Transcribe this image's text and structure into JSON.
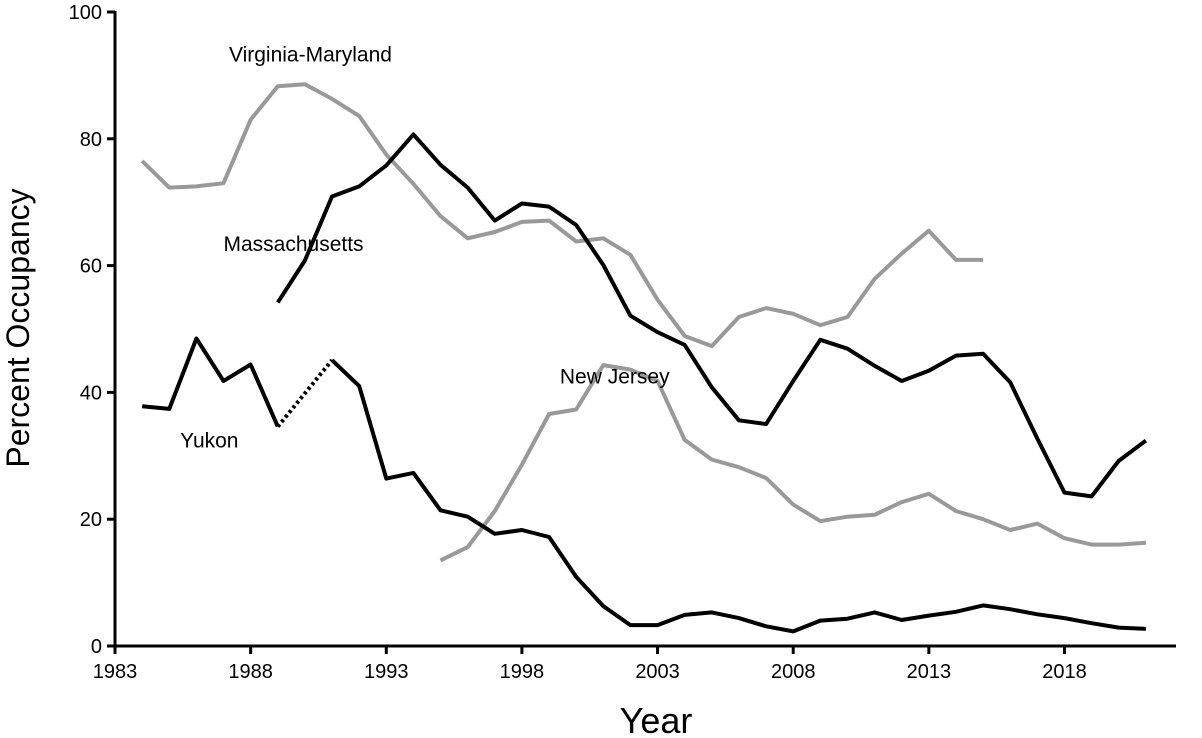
{
  "chart_data": {
    "type": "line",
    "title": "",
    "xlabel": "Year",
    "ylabel": "Percent Occupancy",
    "xlim": [
      1983,
      2022
    ],
    "ylim": [
      0,
      100
    ],
    "x_ticks": [
      1983,
      1988,
      1993,
      1998,
      2003,
      2008,
      2013,
      2018
    ],
    "y_ticks": [
      0,
      20,
      40,
      60,
      80,
      100
    ],
    "grid": false,
    "legend": "none",
    "series": [
      {
        "name": "Virginia-Maryland",
        "color": "#999999",
        "x": [
          1984,
          1985,
          1986,
          1987,
          1988,
          1989,
          1990,
          1991,
          1992,
          1993,
          1994,
          1995,
          1996,
          1997,
          1998,
          1999,
          2000,
          2001,
          2002,
          2003,
          2004,
          2005,
          2006,
          2007,
          2008,
          2009,
          2010,
          2011,
          2012,
          2013,
          2014,
          2015
        ],
        "y": [
          76.5,
          72.3,
          72.5,
          73.0,
          83.0,
          88.3,
          88.6,
          86.3,
          83.6,
          77.5,
          72.9,
          67.8,
          64.3,
          65.3,
          66.9,
          67.1,
          63.8,
          64.3,
          61.7,
          54.6,
          48.9,
          47.3,
          51.9,
          53.3,
          52.4,
          50.6,
          51.9,
          57.9,
          61.9,
          65.5,
          60.9,
          60.9
        ]
      },
      {
        "name": "Massachusetts",
        "color": "#000000",
        "x": [
          1989,
          1990,
          1991,
          1992,
          1993,
          1994,
          1995,
          1996,
          1997,
          1998,
          1999,
          2000,
          2001,
          2002,
          2003,
          2004,
          2005,
          2006,
          2007,
          2008,
          2009,
          2010,
          2011,
          2012,
          2013,
          2014,
          2015,
          2016,
          2017,
          2018,
          2019,
          2020,
          2021
        ],
        "y": [
          54.2,
          60.8,
          70.9,
          72.5,
          75.8,
          80.7,
          75.9,
          72.3,
          67.1,
          69.8,
          69.3,
          66.4,
          60.1,
          52.1,
          49.5,
          47.5,
          40.8,
          35.6,
          35.0,
          41.8,
          48.3,
          46.9,
          44.2,
          41.8,
          43.4,
          45.8,
          46.1,
          41.6,
          32.7,
          24.2,
          23.6,
          29.2,
          32.4
        ]
      },
      {
        "name": "New Jersey",
        "color": "#999999",
        "x": [
          1995,
          1996,
          1997,
          1998,
          1999,
          2000,
          2001,
          2002,
          2003,
          2004,
          2005,
          2006,
          2007,
          2008,
          2009,
          2010,
          2011,
          2012,
          2013,
          2014,
          2015,
          2016,
          2017,
          2018,
          2019,
          2020,
          2021
        ],
        "y": [
          13.5,
          15.6,
          21.3,
          28.6,
          36.6,
          37.3,
          44.3,
          43.6,
          41.8,
          32.5,
          29.4,
          28.2,
          26.5,
          22.3,
          19.7,
          20.4,
          20.7,
          22.7,
          24.0,
          21.3,
          20.0,
          18.3,
          19.3,
          17.0,
          16.0,
          16.0,
          16.3
        ]
      },
      {
        "name": "Yukon",
        "color": "#000000",
        "x": [
          1984,
          1985,
          1986,
          1987,
          1988,
          1989,
          1991,
          1992,
          1993,
          1994,
          1995,
          1996,
          1997,
          1998,
          1999,
          2000,
          2001,
          2002,
          2003,
          2004,
          2005,
          2006,
          2007,
          2008,
          2009,
          2010,
          2011,
          2012,
          2013,
          2014,
          2015,
          2016,
          2017,
          2018,
          2019,
          2020,
          2021
        ],
        "y": [
          37.8,
          37.4,
          48.5,
          41.8,
          44.4,
          34.6,
          45.1,
          41.0,
          26.4,
          27.3,
          21.4,
          20.4,
          17.7,
          18.3,
          17.2,
          10.9,
          6.3,
          3.3,
          3.3,
          4.9,
          5.3,
          4.4,
          3.1,
          2.3,
          4.0,
          4.3,
          5.3,
          4.1,
          4.8,
          5.4,
          6.4,
          5.8,
          5.0,
          4.4,
          3.6,
          2.9,
          2.7
        ],
        "dotted_gap": [
          [
            1989,
            34.6
          ],
          [
            1991,
            45.1
          ]
        ]
      }
    ],
    "annotations": [
      {
        "text": "Virginia-Maryland",
        "series": "Virginia-Maryland",
        "x": 1987.2,
        "y": 92.2
      },
      {
        "text": "Massachusetts",
        "series": "Massachusetts",
        "x": 1987.0,
        "y": 62.3
      },
      {
        "text": "New Jersey",
        "series": "New Jersey",
        "x": 1999.4,
        "y": 41.4
      },
      {
        "text": "Yukon",
        "series": "Yukon",
        "x": 1985.4,
        "y": 31.3
      }
    ]
  }
}
